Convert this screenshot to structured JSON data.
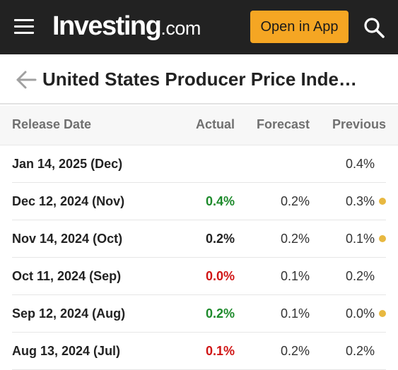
{
  "header": {
    "logo_main": "Investing",
    "logo_tld": ".com",
    "open_app_label": "Open in App",
    "icons": [
      "menu-icon",
      "search-icon"
    ],
    "background_color": "#222222",
    "accent_color": "#f5a623"
  },
  "title_bar": {
    "title": "United States Producer Price Inde…",
    "back_icon": "back-arrow-icon"
  },
  "table": {
    "columns": [
      "Release Date",
      "Actual",
      "Forecast",
      "Previous"
    ],
    "rows": [
      {
        "date": "Jan 14, 2025 (Dec)",
        "actual": "",
        "actual_trend": "none",
        "forecast": "",
        "previous": "0.4%",
        "revised": false
      },
      {
        "date": "Dec 12, 2024 (Nov)",
        "actual": "0.4%",
        "actual_trend": "up",
        "forecast": "0.2%",
        "previous": "0.3%",
        "revised": true
      },
      {
        "date": "Nov 14, 2024 (Oct)",
        "actual": "0.2%",
        "actual_trend": "neutral",
        "forecast": "0.2%",
        "previous": "0.1%",
        "revised": true
      },
      {
        "date": "Oct 11, 2024 (Sep)",
        "actual": "0.0%",
        "actual_trend": "down",
        "forecast": "0.1%",
        "previous": "0.2%",
        "revised": false
      },
      {
        "date": "Sep 12, 2024 (Aug)",
        "actual": "0.2%",
        "actual_trend": "up",
        "forecast": "0.1%",
        "previous": "0.0%",
        "revised": true
      },
      {
        "date": "Aug 13, 2024 (Jul)",
        "actual": "0.1%",
        "actual_trend": "down",
        "forecast": "0.2%",
        "previous": "0.2%",
        "revised": false
      }
    ]
  },
  "colors": {
    "up": "#1d8a2b",
    "down": "#d01515",
    "neutral": "#222222",
    "revised_dot": "#e8b840"
  }
}
